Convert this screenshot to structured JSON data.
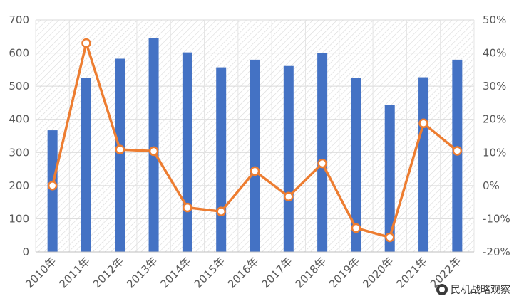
{
  "chart_data": {
    "type": "bar+line",
    "categories": [
      "2010年",
      "2011年",
      "2012年",
      "2013年",
      "2014年",
      "2015年",
      "2016年",
      "2017年",
      "2018年",
      "2019年",
      "2020年",
      "2021年",
      "2022年"
    ],
    "series": [
      {
        "type": "bar",
        "axis": "left",
        "color": "#4472C4",
        "values": [
          367,
          525,
          583,
          645,
          602,
          557,
          580,
          561,
          600,
          525,
          443,
          527,
          580
        ]
      },
      {
        "type": "line",
        "axis": "right",
        "color": "#ED7D31",
        "values": [
          0.0,
          43.0,
          10.9,
          10.4,
          -6.6,
          -7.8,
          4.4,
          -3.3,
          6.7,
          -12.8,
          -15.6,
          18.8,
          10.5
        ]
      }
    ],
    "y_left": {
      "ylim": [
        0,
        700
      ],
      "ticks": [
        "0",
        "100",
        "200",
        "300",
        "400",
        "500",
        "600",
        "700"
      ]
    },
    "y_right": {
      "ylim": [
        -20,
        50
      ],
      "ticks": [
        "-20%",
        "-10%",
        "0%",
        "10%",
        "20%",
        "30%",
        "40%",
        "50%"
      ]
    },
    "grid": true,
    "background": "hatched"
  },
  "watermark": {
    "text": "民机战略观察"
  }
}
